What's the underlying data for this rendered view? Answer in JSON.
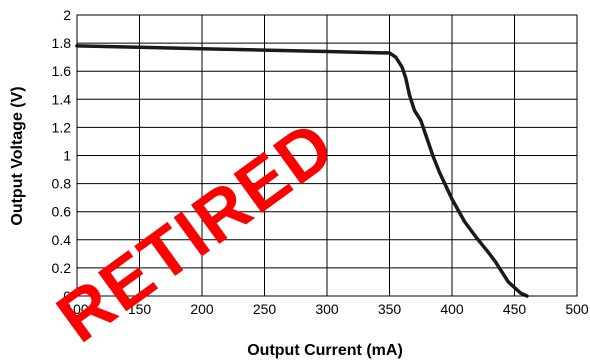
{
  "chart_data": {
    "type": "line",
    "title": "",
    "xlabel": "Output Current (mA)",
    "ylabel": "Output Voltage (V)",
    "xlim": [
      100,
      500
    ],
    "ylim": [
      0,
      2
    ],
    "x_ticks": [
      100,
      150,
      200,
      250,
      300,
      350,
      400,
      450,
      500
    ],
    "y_ticks": [
      0,
      0.2,
      0.4,
      0.6,
      0.8,
      1,
      1.2,
      1.4,
      1.6,
      1.8,
      2
    ],
    "x_tick_labels": [
      "100",
      "150",
      "200",
      "250",
      "300",
      "350",
      "400",
      "450",
      "500"
    ],
    "y_tick_labels": [
      "0",
      "0.2",
      "0.4",
      "0.6",
      "0.8",
      "1",
      "1.2",
      "1.4",
      "1.6",
      "1.8",
      "2"
    ],
    "grid": true,
    "series": [
      {
        "color": "#1a1a1a",
        "x": [
          100,
          150,
          200,
          250,
          300,
          345,
          350,
          355,
          360,
          363,
          366,
          370,
          375,
          380,
          385,
          390,
          400,
          410,
          420,
          430,
          435,
          440,
          445,
          450,
          455,
          460
        ],
        "y": [
          1.78,
          1.77,
          1.76,
          1.75,
          1.74,
          1.73,
          1.73,
          1.7,
          1.63,
          1.55,
          1.43,
          1.32,
          1.25,
          1.12,
          0.99,
          0.88,
          0.69,
          0.53,
          0.41,
          0.3,
          0.24,
          0.17,
          0.1,
          0.06,
          0.02,
          0
        ]
      }
    ]
  },
  "watermark": {
    "text": "RETIRED",
    "color": "#ff0000"
  }
}
